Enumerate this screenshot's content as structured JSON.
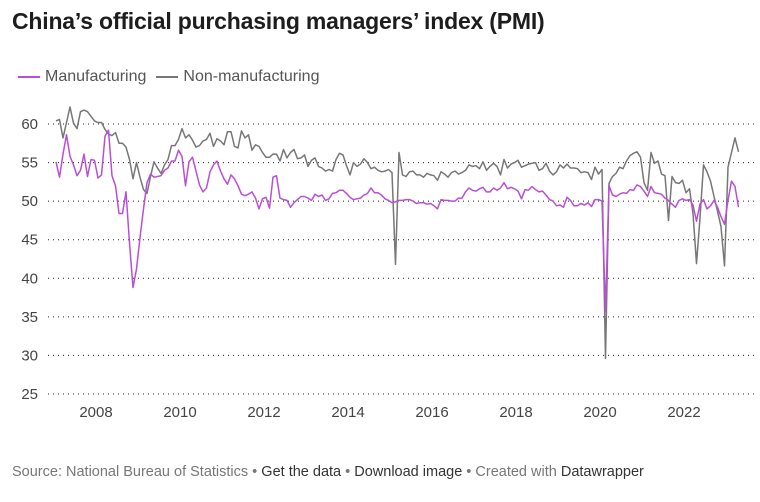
{
  "title": "China’s official purchasing managers’ index (PMI)",
  "legend": [
    {
      "label": "Manufacturing",
      "color": "#b94fd6"
    },
    {
      "label": "Non-manufacturing",
      "color": "#777777"
    }
  ],
  "footer": {
    "source": "Source: National Bureau of Statistics",
    "sep": " • ",
    "get_data": "Get the data",
    "download": "Download image",
    "created_with": "Created with ",
    "datawrapper": "Datawrapper"
  },
  "chart_data": {
    "type": "line",
    "title": "China’s official purchasing managers’ index (PMI)",
    "xlabel": "",
    "ylabel": "",
    "ylim": [
      25,
      60
    ],
    "yticks": [
      25,
      30,
      35,
      40,
      45,
      50,
      55,
      60
    ],
    "xticks": [
      "2008",
      "2010",
      "2012",
      "2014",
      "2016",
      "2018",
      "2020",
      "2022"
    ],
    "x_start": "2007-01",
    "x_frequency": "monthly",
    "grid": "horizontal-dotted",
    "legend_position": "top-left",
    "series": [
      {
        "name": "Manufacturing",
        "color": "#b94fd6",
        "values": [
          55.1,
          53.1,
          56.1,
          58.6,
          55.8,
          54.7,
          53.3,
          54.0,
          56.1,
          53.2,
          55.4,
          55.3,
          53.0,
          53.4,
          58.4,
          59.2,
          53.3,
          52.0,
          48.4,
          48.4,
          51.2,
          44.6,
          38.8,
          41.2,
          45.3,
          49.0,
          52.4,
          53.5,
          53.1,
          53.2,
          53.3,
          54.0,
          54.3,
          55.2,
          55.2,
          56.6,
          55.8,
          52.0,
          55.1,
          55.7,
          53.9,
          52.1,
          51.2,
          51.7,
          53.8,
          54.7,
          55.2,
          53.9,
          52.9,
          52.2,
          53.4,
          52.9,
          52.0,
          50.9,
          50.7,
          50.9,
          51.2,
          50.4,
          49.0,
          50.3,
          50.5,
          49.1,
          53.1,
          53.3,
          50.4,
          50.2,
          50.1,
          49.2,
          49.8,
          50.2,
          50.6,
          50.6,
          50.4,
          50.1,
          50.9,
          50.6,
          50.8,
          50.1,
          50.3,
          51.0,
          51.1,
          51.4,
          51.4,
          51.0,
          50.5,
          50.2,
          50.3,
          50.4,
          50.8,
          51.0,
          51.7,
          51.1,
          51.1,
          50.8,
          50.3,
          50.1,
          49.8,
          49.9,
          50.1,
          50.1,
          50.2,
          50.2,
          50.0,
          49.7,
          49.8,
          49.8,
          49.6,
          49.7,
          49.4,
          49.0,
          50.2,
          50.1,
          50.1,
          50.0,
          50.0,
          50.4,
          50.4,
          51.2,
          51.7,
          51.4,
          51.3,
          51.6,
          51.8,
          51.2,
          51.2,
          51.7,
          51.4,
          51.7,
          52.4,
          51.6,
          51.8,
          51.6,
          51.3,
          50.3,
          51.5,
          51.4,
          51.9,
          51.5,
          51.2,
          51.3,
          50.8,
          50.2,
          50.0,
          49.4,
          49.5,
          49.2,
          50.5,
          50.1,
          49.4,
          49.4,
          49.7,
          49.5,
          49.8,
          49.3,
          50.2,
          50.2,
          50.0,
          35.7,
          52.0,
          50.8,
          50.6,
          50.9,
          51.1,
          51.0,
          51.5,
          51.4,
          52.1,
          51.9,
          51.3,
          50.6,
          51.9,
          51.1,
          51.0,
          50.9,
          50.4,
          50.1,
          49.6,
          49.2,
          50.1,
          50.3,
          50.1,
          50.2,
          49.5,
          47.4,
          49.6,
          50.2,
          49.0,
          49.4,
          50.1,
          49.2,
          48.0,
          47.0,
          50.1,
          52.6,
          51.9,
          49.2
        ]
      },
      {
        "name": "Non-manufacturing",
        "color": "#777777",
        "values": [
          60.4,
          60.6,
          58.2,
          60.2,
          62.2,
          60.1,
          59.4,
          61.6,
          61.8,
          61.6,
          61.0,
          60.4,
          60.2,
          60.2,
          59.3,
          58.7,
          58.5,
          58.9,
          57.5,
          57.5,
          57.0,
          55.4,
          52.9,
          55.0,
          53.1,
          51.5,
          51.0,
          53.2,
          55.1,
          54.3,
          53.6,
          54.7,
          55.4,
          57.2,
          57.2,
          58.0,
          59.4,
          58.2,
          58.6,
          57.9,
          57.0,
          57.2,
          57.8,
          58.0,
          58.8,
          57.1,
          58.1,
          57.8,
          57.3,
          59.0,
          59.0,
          57.1,
          56.9,
          59.1,
          58.2,
          58.6,
          56.6,
          57.3,
          57.1,
          56.3,
          55.7,
          55.7,
          56.1,
          56.1,
          55.2,
          56.7,
          55.6,
          56.3,
          56.7,
          55.5,
          55.6,
          56.0,
          54.5,
          55.3,
          55.6,
          54.5,
          54.3,
          53.9,
          54.1,
          53.9,
          55.4,
          56.2,
          56.0,
          54.6,
          53.4,
          55.0,
          54.5,
          54.8,
          55.5,
          55.0,
          54.2,
          54.4,
          54.0,
          53.8,
          53.9,
          54.1,
          53.7,
          41.8,
          56.3,
          53.4,
          53.2,
          53.8,
          53.9,
          53.4,
          53.4,
          53.1,
          53.6,
          53.4,
          53.3,
          52.7,
          53.8,
          53.5,
          53.1,
          53.7,
          53.9,
          53.5,
          53.7,
          54.0,
          54.7,
          54.5,
          54.6,
          54.2,
          55.1,
          54.0,
          54.5,
          54.9,
          54.5,
          53.4,
          55.4,
          54.3,
          54.8,
          55.0,
          55.3,
          54.4,
          54.6,
          54.8,
          54.9,
          55.0,
          54.0,
          54.2,
          54.9,
          53.9,
          53.4,
          53.8,
          54.7,
          54.3,
          54.8,
          54.3,
          54.3,
          54.2,
          53.7,
          53.8,
          53.7,
          52.8,
          54.4,
          53.5,
          54.1,
          29.6,
          52.3,
          53.2,
          53.6,
          54.4,
          54.2,
          55.2,
          55.9,
          56.2,
          56.4,
          55.7,
          52.4,
          51.4,
          56.3,
          54.9,
          55.2,
          53.5,
          53.3,
          47.5,
          53.2,
          52.4,
          52.3,
          52.7,
          51.1,
          51.6,
          48.4,
          41.9,
          47.8,
          54.7,
          53.8,
          52.6,
          50.6,
          48.7,
          46.7,
          41.6,
          54.4,
          56.3,
          58.2,
          56.4
        ]
      }
    ]
  }
}
